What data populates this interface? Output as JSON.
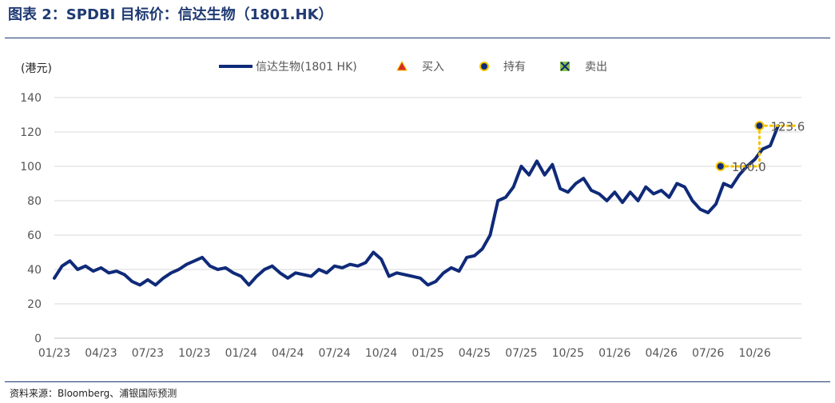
{
  "header": {
    "title": "图表 2：SPDBI 目标价：信达生物（1801.HK）"
  },
  "footer": {
    "source": "资料来源：Bloomberg、浦银国际预测"
  },
  "colors": {
    "series": "#0f2a78",
    "buy": "#d62d20",
    "hold": "#0f2a78",
    "hold_ring": "#f5c300",
    "sell": "#0f2a78",
    "target_line": "#f5c300",
    "grid": "#d9d9d9",
    "axis": "#bfbfbf"
  },
  "chart_data": {
    "type": "line",
    "ylabel": "(港元)",
    "ylim": [
      0,
      140
    ],
    "yticks": [
      0,
      20,
      40,
      60,
      80,
      100,
      120,
      140
    ],
    "xlim": [
      "2023-01",
      "2026-12"
    ],
    "xticks": [
      "01/23",
      "04/23",
      "07/23",
      "10/23",
      "01/24",
      "04/24",
      "07/24",
      "10/24",
      "01/25",
      "04/25",
      "07/25",
      "10/25",
      "01/26",
      "04/26",
      "07/26",
      "10/26"
    ],
    "grid": "horizontal",
    "legend": {
      "placement": "top",
      "entries": [
        {
          "label": "信达生物(1801 HK)",
          "marker": "line"
        },
        {
          "label": "买入",
          "marker": "triangle"
        },
        {
          "label": "持有",
          "marker": "circle"
        },
        {
          "label": "卖出",
          "marker": "cross-square"
        }
      ]
    },
    "series": [
      {
        "name": "信达生物(1801 HK)",
        "months": [
          0,
          0.5,
          1,
          1.5,
          2,
          2.5,
          3,
          3.5,
          4,
          4.5,
          5,
          5.5,
          6,
          6.5,
          7,
          7.5,
          8,
          8.5,
          9,
          9.5,
          10,
          10.5,
          11,
          11.5,
          12,
          12.5,
          13,
          13.5,
          14,
          14.5,
          15,
          15.5,
          16,
          16.5,
          17,
          17.5,
          18,
          18.5,
          19,
          19.5,
          20,
          20.5,
          21,
          21.5,
          22,
          22.5,
          23,
          23.5,
          24,
          24.5,
          25,
          25.5,
          26,
          26.5,
          27,
          27.5,
          28,
          28.5,
          29,
          29.5,
          30,
          30.5,
          31,
          31.5,
          32,
          32.5,
          33,
          33.5,
          34,
          34.5,
          35,
          35.5,
          36,
          36.5,
          37,
          37.5,
          38,
          38.5,
          39,
          39.5,
          40,
          40.5,
          41,
          41.5,
          42,
          42.5,
          43,
          43.5,
          44,
          44.5,
          45,
          45.5,
          46,
          46.5
        ],
        "values": [
          35,
          42,
          45,
          40,
          42,
          39,
          41,
          38,
          39,
          37,
          33,
          31,
          34,
          31,
          35,
          38,
          40,
          43,
          45,
          47,
          42,
          40,
          41,
          38,
          36,
          31,
          36,
          40,
          42,
          38,
          35,
          38,
          37,
          36,
          40,
          38,
          42,
          41,
          43,
          42,
          44,
          50,
          46,
          36,
          38,
          37,
          36,
          35,
          31,
          33,
          38,
          41,
          39,
          47,
          48,
          52,
          60,
          80,
          82,
          88,
          100,
          95,
          103,
          95,
          101,
          87,
          85,
          90,
          93,
          86,
          84,
          80,
          85,
          79,
          85,
          80,
          88,
          84,
          86,
          82,
          90,
          88,
          80,
          75,
          73,
          78,
          90,
          88,
          95,
          100,
          104,
          110,
          112,
          123.6
        ]
      }
    ],
    "ratings": [
      {
        "rating": "持有",
        "month": 42.8,
        "target": 100.0,
        "label": "100.0"
      },
      {
        "rating": "持有",
        "month": 45.3,
        "target": 123.6,
        "label": "123.6"
      }
    ]
  }
}
